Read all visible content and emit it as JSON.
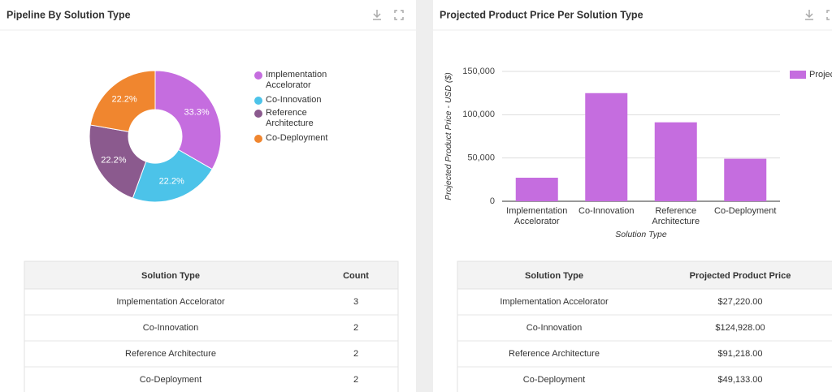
{
  "chart_data": [
    {
      "type": "pie",
      "title": "Pipeline By Solution Type",
      "categories": [
        "Implementation Accelorator",
        "Co-Innovation",
        "Reference Architecture",
        "Co-Deployment"
      ],
      "values": [
        33.3,
        22.2,
        22.2,
        22.2
      ],
      "value_labels": [
        "33.3%",
        "22.2%",
        "22.2%",
        "22.2%"
      ],
      "colors": [
        "#c56ddf",
        "#4cc3e9",
        "#8b5a8e",
        "#f0862f"
      ],
      "legend": "right"
    },
    {
      "type": "bar",
      "title": "Projected Product Price Per Solution Type",
      "categories": [
        "Implementation Accelorator",
        "Co-Innovation",
        "Reference Architecture",
        "Co-Deployment"
      ],
      "x_label": "Solution Type",
      "y_label": "Projected Product Price - USD ($)",
      "series": [
        {
          "name": "Projected Product Price",
          "color": "#c56ddf",
          "values": [
            27220,
            124928,
            91218,
            49133
          ]
        }
      ],
      "ylim": [
        0,
        150000
      ],
      "yticks": [
        0,
        {
          "value": 50000,
          "label": "50,000"
        },
        {
          "value": 100000,
          "label": "100,000"
        },
        {
          "value": 150000,
          "label": "150,000"
        }
      ],
      "grid": true,
      "legend": "right"
    }
  ],
  "tables": [
    {
      "columns": [
        "Solution Type",
        "Count"
      ],
      "rows": [
        [
          "Implementation Accelorator",
          3
        ],
        [
          "Co-Innovation",
          2
        ],
        [
          "Reference Architecture",
          2
        ],
        [
          "Co-Deployment",
          2
        ]
      ]
    },
    {
      "columns": [
        "Solution Type",
        "Projected Product Price"
      ],
      "rows": [
        [
          "Implementation Accelorator",
          "$27,220.00"
        ],
        [
          "Co-Innovation",
          "$124,928.00"
        ],
        [
          "Reference Architecture",
          "$91,218.00"
        ],
        [
          "Co-Deployment",
          "$49,133.00"
        ]
      ]
    }
  ]
}
